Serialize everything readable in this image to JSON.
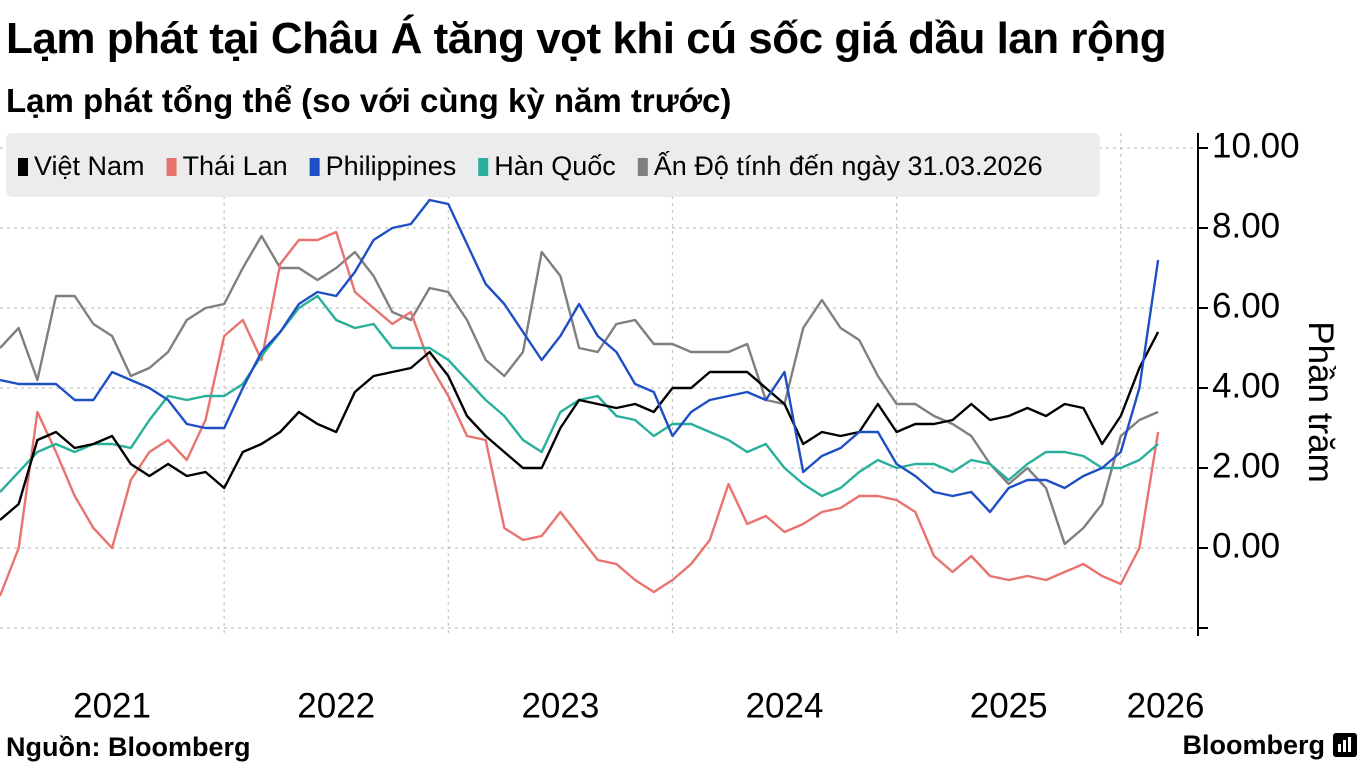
{
  "title": "Lạm phát tại Châu Á tăng vọt khi cú sốc giá dầu lan rộng",
  "subtitle": "Lạm phát tổng thể (so với cùng kỳ năm trước)",
  "source": "Nguồn: Bloomberg",
  "brand": "Bloomberg",
  "chart_data": {
    "type": "line",
    "ylabel": "Phần trăm",
    "ylim": [
      -2,
      10
    ],
    "y_ticks": [
      "10.00",
      "8.00",
      "6.00",
      "4.00",
      "2.00",
      "0.00"
    ],
    "y_tick_values": [
      10,
      8,
      6,
      4,
      2,
      0
    ],
    "x_ticks": [
      "2021",
      "2022",
      "2023",
      "2024",
      "2025",
      "2026"
    ],
    "x_tick_values": [
      2021.5,
      2022.5,
      2023.5,
      2024.5,
      2025.5,
      2026.2
    ],
    "x_range": [
      2021.0,
      2026.3
    ],
    "grid": true,
    "legend_position": "top-left",
    "series": [
      {
        "name": "Việt Nam",
        "color": "#000000",
        "start": 2021.0,
        "values": [
          0.7,
          1.1,
          2.7,
          2.9,
          2.5,
          2.6,
          2.8,
          2.1,
          1.8,
          2.1,
          1.8,
          1.9,
          1.5,
          2.4,
          2.6,
          2.9,
          3.4,
          3.1,
          2.9,
          3.9,
          4.3,
          4.4,
          4.5,
          4.9,
          4.3,
          3.3,
          2.8,
          2.4,
          2.0,
          2.0,
          3.0,
          3.7,
          3.6,
          3.5,
          3.6,
          3.4,
          4.0,
          4.0,
          4.4,
          4.4,
          4.4,
          4.0,
          3.6,
          2.6,
          2.9,
          2.8,
          2.9,
          3.6,
          2.9,
          3.1,
          3.1,
          3.2,
          3.6,
          3.2,
          3.3,
          3.5,
          3.3,
          3.6,
          3.5,
          2.6,
          3.3,
          4.5,
          5.4
        ]
      },
      {
        "name": "Thái Lan",
        "color": "#e8736f",
        "start": 2021.0,
        "values": [
          -1.2,
          0.0,
          3.4,
          2.4,
          1.3,
          0.5,
          0.0,
          1.7,
          2.4,
          2.7,
          2.2,
          3.2,
          5.3,
          5.7,
          4.7,
          7.1,
          7.7,
          7.7,
          7.9,
          6.4,
          6.0,
          5.6,
          5.9,
          4.6,
          3.8,
          2.8,
          2.7,
          0.5,
          0.2,
          0.3,
          0.9,
          0.3,
          -0.3,
          -0.4,
          -0.8,
          -1.1,
          -0.8,
          -0.4,
          0.2,
          1.6,
          0.6,
          0.8,
          0.4,
          0.6,
          0.9,
          1.0,
          1.3,
          1.3,
          1.2,
          0.9,
          -0.2,
          -0.6,
          -0.2,
          -0.7,
          -0.8,
          -0.7,
          -0.8,
          -0.6,
          -0.4,
          -0.7,
          -0.9,
          0.0,
          2.9
        ]
      },
      {
        "name": "Philippines",
        "color": "#1f4fc4",
        "start": 2021.0,
        "values": [
          4.2,
          4.1,
          4.1,
          4.1,
          3.7,
          3.7,
          4.4,
          4.2,
          4.0,
          3.7,
          3.1,
          3.0,
          3.0,
          4.0,
          4.9,
          5.4,
          6.1,
          6.4,
          6.3,
          6.9,
          7.7,
          8.0,
          8.1,
          8.7,
          8.6,
          7.6,
          6.6,
          6.1,
          5.4,
          4.7,
          5.3,
          6.1,
          5.3,
          4.9,
          4.1,
          3.9,
          2.8,
          3.4,
          3.7,
          3.8,
          3.9,
          3.7,
          4.4,
          1.9,
          2.3,
          2.5,
          2.9,
          2.9,
          2.1,
          1.8,
          1.4,
          1.3,
          1.4,
          0.9,
          1.5,
          1.7,
          1.7,
          1.5,
          1.8,
          2.0,
          2.4,
          4.0,
          7.2
        ]
      },
      {
        "name": "Hàn Quốc",
        "color": "#28b09a",
        "start": 2021.0,
        "values": [
          1.4,
          1.9,
          2.4,
          2.6,
          2.4,
          2.6,
          2.6,
          2.5,
          3.2,
          3.8,
          3.7,
          3.8,
          3.8,
          4.1,
          4.8,
          5.4,
          6.0,
          6.3,
          5.7,
          5.5,
          5.6,
          5.0,
          5.0,
          5.0,
          4.7,
          4.2,
          3.7,
          3.3,
          2.7,
          2.4,
          3.4,
          3.7,
          3.8,
          3.3,
          3.2,
          2.8,
          3.1,
          3.1,
          2.9,
          2.7,
          2.4,
          2.6,
          2.0,
          1.6,
          1.3,
          1.5,
          1.9,
          2.2,
          2.0,
          2.1,
          2.1,
          1.9,
          2.2,
          2.1,
          1.7,
          2.1,
          2.4,
          2.4,
          2.3,
          2.0,
          2.0,
          2.2,
          2.6
        ]
      },
      {
        "name": "Ấn Độ tính đến ngày 31.03.2026",
        "color": "#7f7f7f",
        "start": 2021.0,
        "values": [
          5.0,
          5.5,
          4.2,
          6.3,
          6.3,
          5.6,
          5.3,
          4.3,
          4.5,
          4.9,
          5.7,
          6.0,
          6.1,
          7.0,
          7.8,
          7.0,
          7.0,
          6.7,
          7.0,
          7.4,
          6.8,
          5.9,
          5.7,
          6.5,
          6.4,
          5.7,
          4.7,
          4.3,
          4.9,
          7.4,
          6.8,
          5.0,
          4.9,
          5.6,
          5.7,
          5.1,
          5.1,
          4.9,
          4.9,
          4.9,
          5.1,
          3.7,
          3.6,
          5.5,
          6.2,
          5.5,
          5.2,
          4.3,
          3.6,
          3.6,
          3.3,
          3.1,
          2.8,
          2.1,
          1.6,
          2.0,
          1.5,
          0.1,
          0.5,
          1.1,
          2.8,
          3.2,
          3.4
        ]
      }
    ]
  }
}
